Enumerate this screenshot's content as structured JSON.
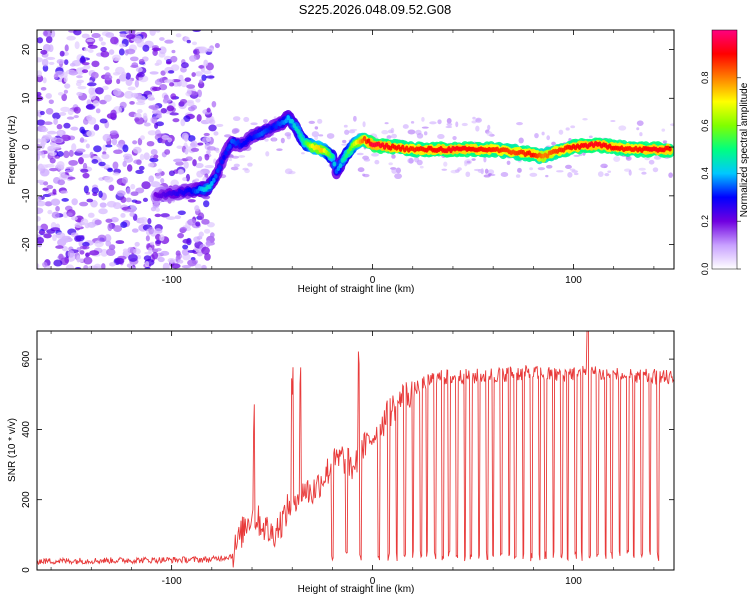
{
  "title": "S225.2026.048.09.52.G08",
  "chart_data": [
    {
      "type": "heatmap",
      "xlabel": "Height of straight line (km)",
      "ylabel": "Frequency (Hz)",
      "xlim": [
        -167,
        150
      ],
      "ylim": [
        -25,
        24
      ],
      "xticks": [
        -100,
        0,
        100
      ],
      "yticks": [
        -20,
        -10,
        0,
        10,
        20
      ],
      "colorbar": {
        "label": "Normalized spectral amplitude",
        "range": [
          0,
          1
        ],
        "ticks": [
          "0.0",
          "0.2",
          "0.4",
          "0.6",
          "0.8"
        ],
        "colors": [
          "#ffffff",
          "#c8a0ff",
          "#7000e0",
          "#0000ff",
          "#00c8ff",
          "#00ff80",
          "#80ff00",
          "#ffff00",
          "#ff8000",
          "#ff0000",
          "#ff0080"
        ]
      },
      "ridge": {
        "x": [
          -108,
          -100,
          -90,
          -82,
          -78,
          -74,
          -70,
          -65,
          -60,
          -55,
          -50,
          -45,
          -42,
          -38,
          -34,
          -30,
          -25,
          -20,
          -18,
          -15,
          -12,
          -8,
          -4,
          0,
          10,
          20,
          40,
          60,
          70,
          80,
          85,
          90,
          100,
          110,
          120,
          130,
          140,
          148
        ],
        "freq": [
          -10,
          -9.5,
          -9,
          -8.5,
          -6,
          -2,
          1,
          0.5,
          2,
          3,
          4,
          5,
          6,
          4,
          1,
          0,
          -0.5,
          -2,
          -5,
          -3,
          -1,
          1,
          1.5,
          0.5,
          0,
          -0.5,
          -0.5,
          -0.5,
          -1,
          -1.5,
          -2,
          -1,
          0,
          0.5,
          0,
          -0.5,
          -0.5,
          -0.5
        ],
        "amplitude": [
          0.2,
          0.25,
          0.3,
          0.45,
          0.35,
          0.3,
          0.35,
          0.3,
          0.3,
          0.35,
          0.3,
          0.35,
          0.4,
          0.45,
          0.5,
          0.7,
          0.75,
          0.5,
          0.35,
          0.45,
          0.55,
          0.7,
          0.85,
          0.95,
          0.9,
          0.88,
          0.92,
          0.88,
          0.85,
          0.9,
          0.8,
          0.85,
          0.9,
          0.92,
          0.9,
          0.88,
          0.92,
          0.9
        ]
      }
    },
    {
      "type": "line",
      "xlabel": "Height of straight line (km)",
      "ylabel": "SNR (10 * v/v)",
      "xlim": [
        -167,
        150
      ],
      "ylim": [
        0,
        680
      ],
      "xticks": [
        -100,
        0,
        100
      ],
      "yticks": [
        0,
        200,
        400,
        600
      ],
      "color": "#e83a3a",
      "series_envelope": {
        "x": [
          -167,
          -80,
          -70,
          -64,
          -60,
          -55,
          -50,
          -45,
          -40,
          -35,
          -30,
          -25,
          -20,
          -15,
          -10,
          -5,
          0,
          5,
          10,
          15,
          20,
          25,
          30,
          40,
          50,
          60,
          70,
          80,
          90,
          100,
          110,
          120,
          130,
          140,
          150
        ],
        "snr": [
          25,
          30,
          40,
          120,
          160,
          130,
          100,
          140,
          200,
          230,
          220,
          260,
          300,
          320,
          290,
          340,
          380,
          420,
          460,
          490,
          510,
          530,
          545,
          550,
          550,
          555,
          560,
          560,
          555,
          560,
          560,
          555,
          550,
          550,
          545
        ]
      },
      "dropout_x": [
        -20,
        -13,
        -6,
        3,
        8,
        12,
        16,
        20,
        24,
        27,
        31,
        35,
        38,
        42,
        46,
        49,
        53,
        57,
        60,
        64,
        68,
        71,
        75,
        79,
        83,
        86,
        90,
        94,
        97,
        101,
        104,
        108,
        112,
        116,
        119,
        123,
        127,
        130,
        134,
        138,
        142
      ],
      "spike_x": [
        -59,
        -40,
        -36,
        -7,
        107
      ]
    }
  ]
}
